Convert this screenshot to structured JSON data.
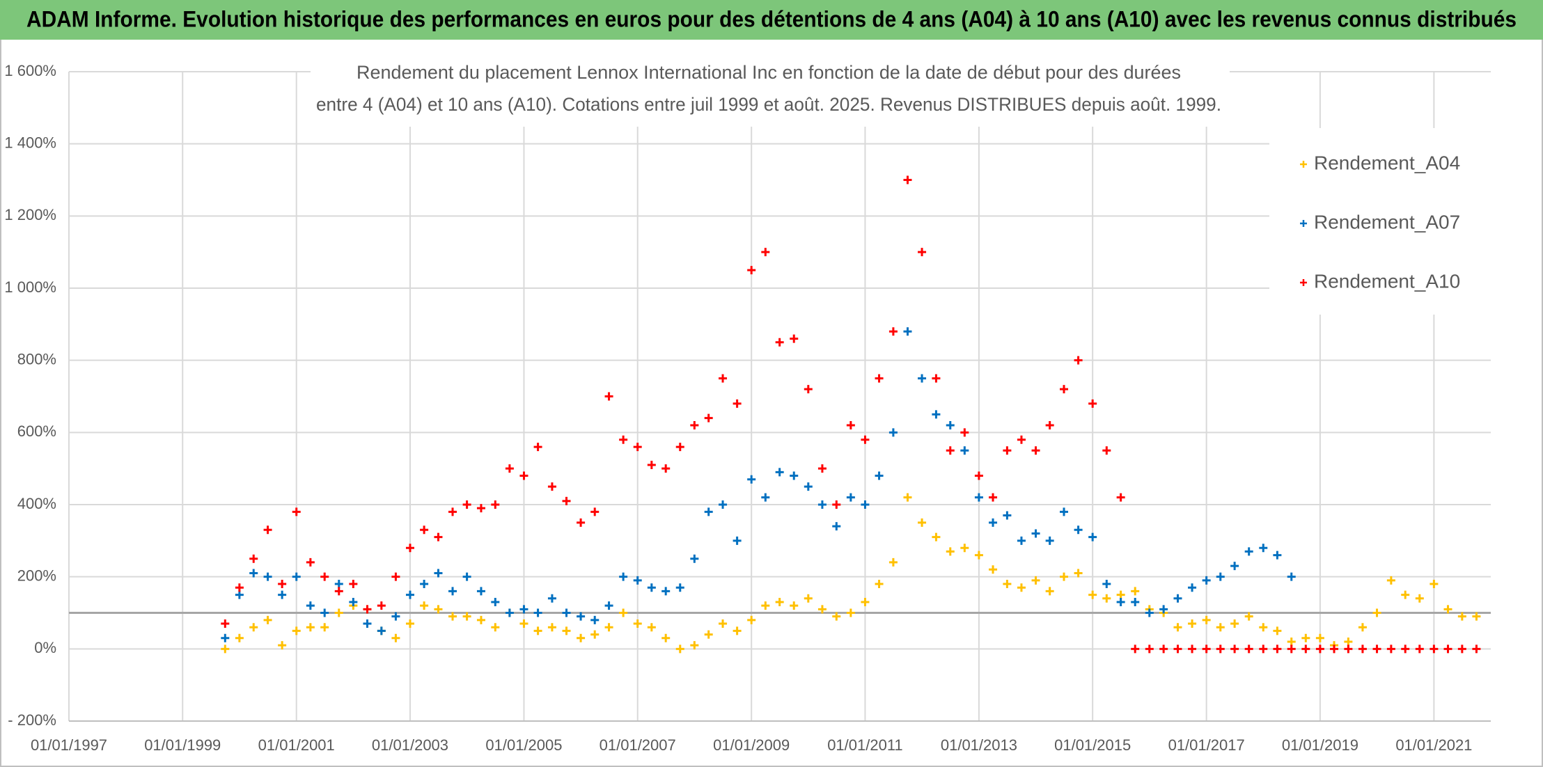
{
  "header": "ADAM Informe. Evolution historique des performances en euros pour des détentions de 4 ans (A04) à 10 ans (A10) avec les revenus connus distribués",
  "chart_data": {
    "type": "scatter",
    "title": "Rendement du placement Lennox International Inc en fonction de la date de début pour des durées",
    "subtitle": "entre 4 (A04) et 10 ans (A10). Cotations entre juil 1999 et août. 2025. Revenus DISTRIBUES depuis août. 1999.",
    "x": [
      "1999-10-01",
      "2000-01-01",
      "2000-04-01",
      "2000-07-01",
      "2000-10-01",
      "2001-01-01",
      "2001-04-01",
      "2001-07-01",
      "2001-10-01",
      "2002-01-01",
      "2002-04-01",
      "2002-07-01",
      "2002-10-01",
      "2003-01-01",
      "2003-04-01",
      "2003-07-01",
      "2003-10-01",
      "2004-01-01",
      "2004-04-01",
      "2004-07-01",
      "2004-10-01",
      "2005-01-01",
      "2005-04-01",
      "2005-07-01",
      "2005-10-01",
      "2006-01-01",
      "2006-04-01",
      "2006-07-01",
      "2006-10-01",
      "2007-01-01",
      "2007-04-01",
      "2007-07-01",
      "2007-10-01",
      "2008-01-01",
      "2008-04-01",
      "2008-07-01",
      "2008-10-01",
      "2009-01-01",
      "2009-04-01",
      "2009-07-01",
      "2009-10-01",
      "2010-01-01",
      "2010-04-01",
      "2010-07-01",
      "2010-10-01",
      "2011-01-01",
      "2011-04-01",
      "2011-07-01",
      "2011-10-01",
      "2012-01-01",
      "2012-04-01",
      "2012-07-01",
      "2012-10-01",
      "2013-01-01",
      "2013-04-01",
      "2013-07-01",
      "2013-10-01",
      "2014-01-01",
      "2014-04-01",
      "2014-07-01",
      "2014-10-01",
      "2015-01-01",
      "2015-04-01",
      "2015-07-01",
      "2015-10-01",
      "2016-01-01",
      "2016-04-01",
      "2016-07-01",
      "2016-10-01",
      "2017-01-01",
      "2017-04-01",
      "2017-07-01",
      "2017-10-01",
      "2018-01-01",
      "2018-04-01",
      "2018-07-01",
      "2018-10-01",
      "2019-01-01",
      "2019-04-01",
      "2019-07-01",
      "2019-10-01",
      "2020-01-01",
      "2020-04-01",
      "2020-07-01",
      "2020-10-01",
      "2021-01-01",
      "2021-04-01",
      "2021-07-01",
      "2021-10-01"
    ],
    "series": [
      {
        "name": "Rendement_A04",
        "color": "#ffc000",
        "values": [
          0,
          30,
          60,
          80,
          10,
          50,
          60,
          60,
          100,
          120,
          110,
          50,
          30,
          70,
          120,
          110,
          90,
          90,
          80,
          60,
          100,
          70,
          50,
          60,
          50,
          30,
          40,
          60,
          100,
          70,
          60,
          30,
          0,
          10,
          40,
          70,
          50,
          80,
          120,
          130,
          120,
          140,
          110,
          90,
          100,
          130,
          180,
          240,
          420,
          350,
          310,
          270,
          280,
          260,
          220,
          180,
          170,
          190,
          160,
          200,
          210,
          150,
          140,
          150,
          160,
          110,
          100,
          60,
          70,
          80,
          60,
          70,
          90,
          60,
          50,
          20,
          30,
          30,
          10,
          20,
          60,
          100,
          190,
          150,
          140,
          180,
          110,
          90,
          90
        ]
      },
      {
        "name": "Rendement_A07",
        "color": "#0070c0",
        "values": [
          30,
          150,
          210,
          200,
          150,
          200,
          120,
          100,
          180,
          130,
          70,
          50,
          90,
          150,
          180,
          210,
          160,
          200,
          160,
          130,
          100,
          110,
          100,
          140,
          100,
          90,
          80,
          120,
          200,
          190,
          170,
          160,
          170,
          250,
          380,
          400,
          300,
          470,
          420,
          490,
          480,
          450,
          400,
          340,
          420,
          400,
          480,
          600,
          880,
          750,
          650,
          620,
          550,
          420,
          350,
          370,
          300,
          320,
          300,
          380,
          330,
          310,
          180,
          130,
          130,
          100,
          110,
          140,
          170,
          190,
          200,
          230,
          270,
          280,
          260,
          200,
          null,
          null,
          null,
          null,
          null,
          null,
          null,
          null,
          null,
          null,
          null,
          null,
          null
        ]
      },
      {
        "name": "Rendement_A10",
        "color": "#ff0000",
        "values": [
          70,
          170,
          250,
          330,
          180,
          380,
          240,
          200,
          160,
          180,
          110,
          120,
          200,
          280,
          330,
          310,
          380,
          400,
          390,
          400,
          500,
          480,
          560,
          450,
          410,
          350,
          380,
          700,
          580,
          560,
          510,
          500,
          560,
          620,
          640,
          750,
          680,
          1050,
          1100,
          850,
          860,
          720,
          500,
          400,
          620,
          580,
          750,
          880,
          1300,
          1100,
          750,
          550,
          600,
          480,
          420,
          550,
          580,
          550,
          620,
          720,
          800,
          680,
          550,
          420,
          0,
          0,
          0,
          0,
          0,
          0,
          0,
          0,
          0,
          0,
          0,
          0,
          0,
          0,
          0,
          0,
          0,
          0,
          0,
          0,
          0,
          0,
          0,
          0,
          0
        ]
      }
    ],
    "xlim": [
      "1997-01-01",
      "2022-01-01"
    ],
    "xticks": [
      {
        "value": "1997-01-01",
        "label": "01/01/1997"
      },
      {
        "value": "1999-01-01",
        "label": "01/01/1999"
      },
      {
        "value": "2001-01-01",
        "label": "01/01/2001"
      },
      {
        "value": "2003-01-01",
        "label": "01/01/2003"
      },
      {
        "value": "2005-01-01",
        "label": "01/01/2005"
      },
      {
        "value": "2007-01-01",
        "label": "01/01/2007"
      },
      {
        "value": "2009-01-01",
        "label": "01/01/2009"
      },
      {
        "value": "2011-01-01",
        "label": "01/01/2011"
      },
      {
        "value": "2013-01-01",
        "label": "01/01/2013"
      },
      {
        "value": "2015-01-01",
        "label": "01/01/2015"
      },
      {
        "value": "2017-01-01",
        "label": "01/01/2017"
      },
      {
        "value": "2019-01-01",
        "label": "01/01/2019"
      },
      {
        "value": "2021-01-01",
        "label": "01/01/2021"
      }
    ],
    "ylim": [
      -200,
      1600
    ],
    "yticks": [
      {
        "value": -200,
        "label": "- 200%"
      },
      {
        "value": 0,
        "label": "0%"
      },
      {
        "value": 200,
        "label": "200%"
      },
      {
        "value": 400,
        "label": "400%"
      },
      {
        "value": 600,
        "label": "600%"
      },
      {
        "value": 800,
        "label": "800%"
      },
      {
        "value": 1000,
        "label": "1 000%"
      },
      {
        "value": 1200,
        "label": "1 200%"
      },
      {
        "value": 1400,
        "label": "1 400%"
      },
      {
        "value": 1600,
        "label": "1 600%"
      }
    ],
    "reference_line": 100,
    "grid": true,
    "legend": "top-right"
  }
}
